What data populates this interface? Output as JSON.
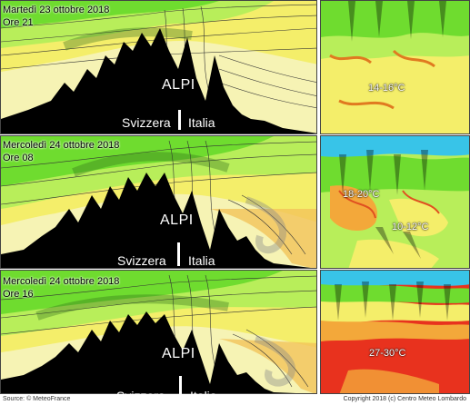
{
  "panels": [
    {
      "date": "Martedì 23 ottobre 2018",
      "time": "Ore 21",
      "label_alpi": "ALPI",
      "label_left": "Svizzera",
      "label_right": "Italia",
      "map_temps": [
        "14-16°C"
      ]
    },
    {
      "date": "Mercoledì 24 ottobre 2018",
      "time": "Ore 08",
      "label_alpi": "ALPI",
      "label_left": "Svizzera",
      "label_right": "Italia",
      "map_temps": [
        "18-20°C",
        "10-12°C"
      ]
    },
    {
      "date": "Mercoledì 24 ottobre 2018",
      "time": "Ore 16",
      "label_alpi": "ALPI",
      "label_left": "Svizzera",
      "label_right": "Italia",
      "map_temps": [
        "27-30°C"
      ]
    }
  ],
  "footer": {
    "source": "Source: © MeteoFrance",
    "copyright": "Copyright 2018 (c) Centro Meteo Lombardo"
  },
  "colors": {
    "green": "#6fdc2f",
    "lightgreen": "#b8ee5a",
    "yellow": "#f4ee6a",
    "paleyellow": "#f6f3b4",
    "orange": "#f3a83a",
    "red": "#e8321e",
    "mountain": "#000000"
  }
}
